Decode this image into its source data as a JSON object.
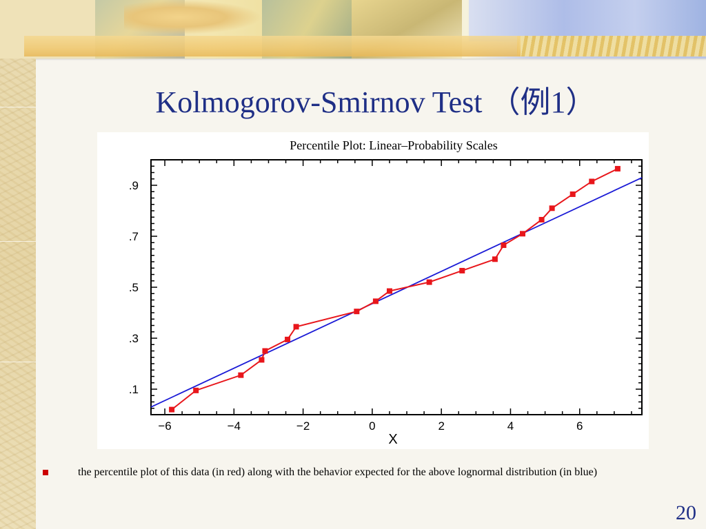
{
  "slide": {
    "title": "Kolmogorov-Smirnov Test （例1）",
    "bullet_text": "the percentile plot of this data (in red) along with the behavior expected for the above lognormal distribution (in blue)",
    "slide_number": "20"
  },
  "colors": {
    "title": "#1f2f86",
    "data_series": "#e8161b",
    "fit_line": "#1a1ad6",
    "bullet": "#cc0000"
  },
  "chart_data": {
    "type": "line",
    "title": "Percentile Plot: Linear–Probability Scales",
    "xlabel": "X",
    "ylabel": "",
    "y_scale": "probability",
    "xlim": [
      -6.4,
      7.8
    ],
    "ylim": [
      0.0,
      1.0
    ],
    "x_ticks": [
      -6,
      -4,
      -2,
      0,
      2,
      4,
      6
    ],
    "x_tick_labels": [
      "−6",
      "−4",
      "−2",
      "0",
      "2",
      "4",
      "6"
    ],
    "y_ticks": [
      0.1,
      0.3,
      0.5,
      0.7,
      0.9
    ],
    "y_tick_labels": [
      ".1",
      ".3",
      ".5",
      ".7",
      ".9"
    ],
    "grid": false,
    "series": [
      {
        "x": [
          -5.8,
          -5.1,
          -3.8,
          -3.2,
          -3.1,
          -2.45,
          -2.2,
          -0.45,
          0.1,
          0.5,
          1.65,
          2.6,
          3.55,
          3.8,
          4.35,
          4.9,
          5.2,
          5.8,
          6.35,
          7.1
        ],
        "y": [
          0.02,
          0.095,
          0.155,
          0.215,
          0.25,
          0.295,
          0.345,
          0.405,
          0.445,
          0.485,
          0.52,
          0.565,
          0.61,
          0.665,
          0.71,
          0.765,
          0.81,
          0.865,
          0.915,
          0.965
        ]
      },
      {
        "x": [
          -6.4,
          7.8
        ],
        "y": [
          0.03,
          0.93
        ]
      }
    ]
  }
}
